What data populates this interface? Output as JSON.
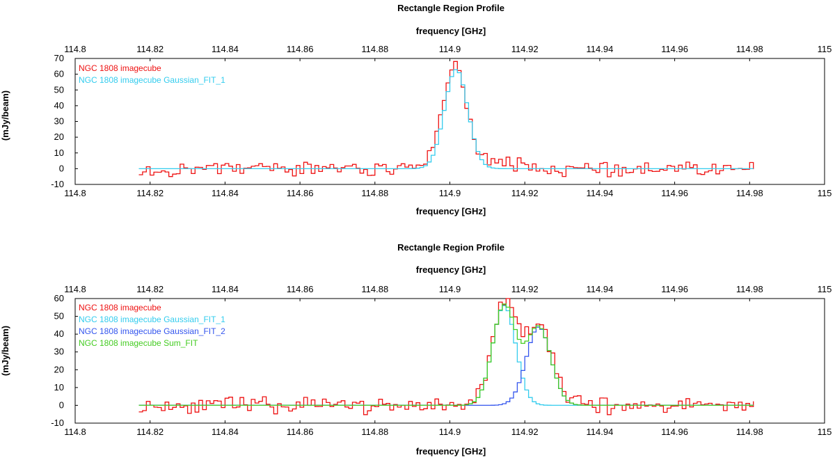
{
  "chart_data": [
    {
      "type": "line",
      "drawstyle": "steps",
      "title": "Rectangle Region Profile",
      "top_axis_label": "frequency [GHz]",
      "xlabel": "frequency [GHz]",
      "ylabel": "(mJy/beam)",
      "xlim": [
        114.8,
        115.0
      ],
      "ylim": [
        -10,
        70
      ],
      "x_ticks": [
        "114.8",
        "114.82",
        "114.84",
        "114.86",
        "114.88",
        "114.9",
        "114.92",
        "114.94",
        "114.96",
        "114.98",
        "115"
      ],
      "y_ticks": [
        "70",
        "60",
        "50",
        "40",
        "30",
        "20",
        "10",
        "0",
        "-10"
      ],
      "legend_position": "top-left",
      "series": [
        {
          "name": "NGC 1808 imagecube",
          "color": "#ee1111",
          "kind": "data",
          "x_range": [
            114.817,
            114.981
          ],
          "noise_amp": 3.5,
          "noise_seed": 3,
          "noise_mult": 6.7,
          "components": [
            {
              "amp": 66,
              "center": 114.9008,
              "sigma": 0.0032
            },
            {
              "amp": 4,
              "center": 114.912,
              "sigma": 0.006
            }
          ]
        },
        {
          "name": "NGC 1808 imagecube Gaussian_FIT_1",
          "color": "#33ccee",
          "kind": "model",
          "x_range": [
            114.817,
            114.981
          ],
          "components": [
            {
              "amp": 63,
              "center": 114.9012,
              "sigma": 0.0031
            }
          ]
        }
      ]
    },
    {
      "type": "line",
      "drawstyle": "steps",
      "title": "Rectangle Region Profile",
      "top_axis_label": "frequency [GHz]",
      "xlabel": "frequency [GHz]",
      "ylabel": "(mJy/beam)",
      "xlim": [
        114.8,
        115.0
      ],
      "ylim": [
        -10,
        60
      ],
      "x_ticks": [
        "114.8",
        "114.82",
        "114.84",
        "114.86",
        "114.88",
        "114.9",
        "114.92",
        "114.94",
        "114.96",
        "114.98",
        "115"
      ],
      "y_ticks": [
        "60",
        "50",
        "40",
        "30",
        "20",
        "10",
        "0",
        "-10"
      ],
      "legend_position": "top-left",
      "series": [
        {
          "name": "NGC 1808 imagecube",
          "color": "#ee1111",
          "kind": "data",
          "x_range": [
            114.817,
            114.981
          ],
          "noise_amp": 3.5,
          "noise_seed": 11,
          "noise_mult": 7.3,
          "components": [
            {
              "amp": 57,
              "center": 114.914,
              "sigma": 0.0032
            },
            {
              "amp": 44,
              "center": 114.9232,
              "sigma": 0.0038
            }
          ]
        },
        {
          "name": "NGC 1808 imagecube Gaussian_FIT_1",
          "color": "#33ccee",
          "kind": "model",
          "x_range": [
            114.817,
            114.981
          ],
          "components": [
            {
              "amp": 56,
              "center": 114.914,
              "sigma": 0.0031
            }
          ]
        },
        {
          "name": "NGC 1808 imagecube Gaussian_FIT_2",
          "color": "#3355ee",
          "kind": "model",
          "x_range": [
            114.817,
            114.981
          ],
          "components": [
            {
              "amp": 44,
              "center": 114.9232,
              "sigma": 0.0033
            }
          ]
        },
        {
          "name": "NGC 1808 imagecube Sum_FIT",
          "color": "#44cc22",
          "kind": "model",
          "x_range": [
            114.817,
            114.981
          ],
          "components": [
            {
              "amp": 56,
              "center": 114.914,
              "sigma": 0.0031
            },
            {
              "amp": 44,
              "center": 114.9232,
              "sigma": 0.0033
            }
          ]
        }
      ]
    }
  ]
}
